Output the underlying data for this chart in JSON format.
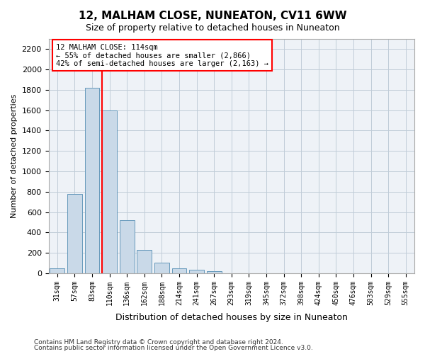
{
  "title": "12, MALHAM CLOSE, NUNEATON, CV11 6WW",
  "subtitle": "Size of property relative to detached houses in Nuneaton",
  "xlabel": "Distribution of detached houses by size in Nuneaton",
  "ylabel": "Number of detached properties",
  "categories": [
    "31sqm",
    "57sqm",
    "83sqm",
    "110sqm",
    "136sqm",
    "162sqm",
    "188sqm",
    "214sqm",
    "241sqm",
    "267sqm",
    "293sqm",
    "319sqm",
    "345sqm",
    "372sqm",
    "398sqm",
    "424sqm",
    "450sqm",
    "476sqm",
    "503sqm",
    "529sqm",
    "555sqm"
  ],
  "values": [
    45,
    780,
    1820,
    1600,
    520,
    230,
    105,
    50,
    35,
    18,
    0,
    0,
    0,
    0,
    0,
    0,
    0,
    0,
    0,
    0,
    0
  ],
  "bar_color": "#c9d9e8",
  "bar_edge_color": "#6699bb",
  "grid_color": "#c0ccd8",
  "bg_color": "#eef2f7",
  "red_line_x": 2.57,
  "annotation_title": "12 MALHAM CLOSE: 114sqm",
  "annotation_line1": "← 55% of detached houses are smaller (2,866)",
  "annotation_line2": "42% of semi-detached houses are larger (2,163) →",
  "footer_line1": "Contains HM Land Registry data © Crown copyright and database right 2024.",
  "footer_line2": "Contains public sector information licensed under the Open Government Licence v3.0.",
  "ylim": [
    0,
    2300
  ],
  "yticks": [
    0,
    200,
    400,
    600,
    800,
    1000,
    1200,
    1400,
    1600,
    1800,
    2000,
    2200
  ]
}
